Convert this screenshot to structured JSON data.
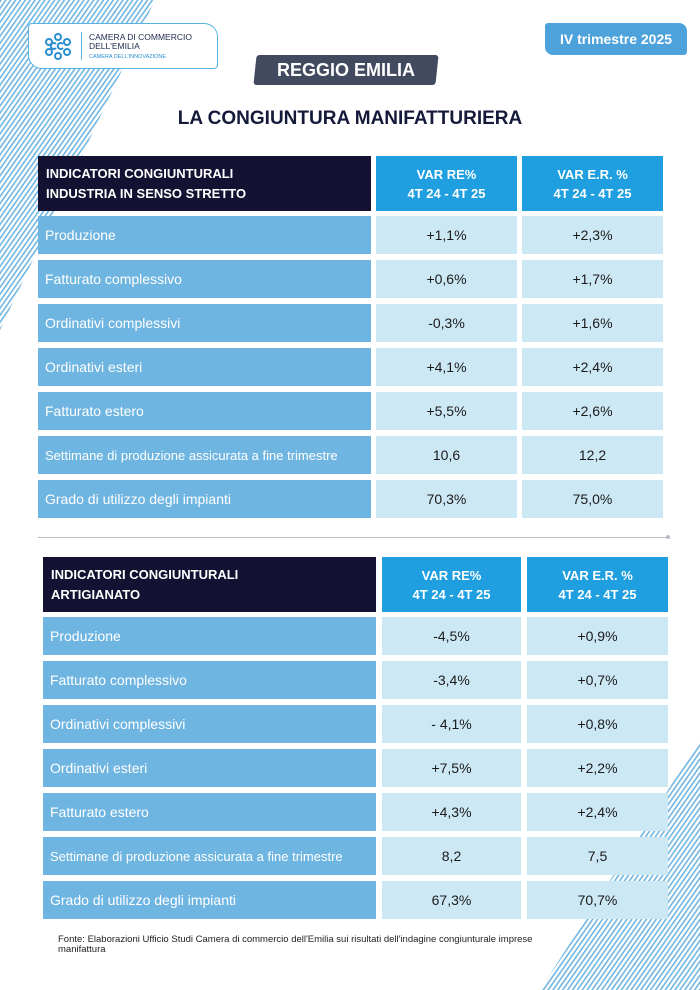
{
  "logo": {
    "line1": "CAMERA DI COMMERCIO",
    "line2": "DELL'EMILIA",
    "tagline": "CAMERA DELL'INNOVAZIONE"
  },
  "region": "REGGIO EMILIA",
  "period": "IV trimestre 2025",
  "title": "LA CONGIUNTURA MANIFATTURIERA",
  "colors": {
    "header_dark": "#141233",
    "header_blue": "#1f9fe0",
    "label_blue": "#6fb5e1",
    "value_bg": "#cde8f5"
  },
  "tables": [
    {
      "header": {
        "label": "INDICATORI CONGIUNTURALI\nINDUSTRIA IN SENSO STRETTO",
        "col1": [
          "VAR RE%",
          "4T 24 - 4T 25"
        ],
        "col2": [
          "VAR E.R. %",
          "4T 24 - 4T 25"
        ]
      },
      "rows": [
        {
          "label": "Produzione",
          "re": "+1,1%",
          "er": "+2,3%"
        },
        {
          "label": "Fatturato complessivo",
          "re": "+0,6%",
          "er": "+1,7%"
        },
        {
          "label": "Ordinativi complessivi",
          "re": "-0,3%",
          "er": "+1,6%"
        },
        {
          "label": "Ordinativi esteri",
          "re": "+4,1%",
          "er": "+2,4%"
        },
        {
          "label": "Fatturato estero",
          "re": "+5,5%",
          "er": "+2,6%"
        },
        {
          "label": "Settimane di produzione assicurata a fine trimestre",
          "re": "10,6",
          "er": "12,2"
        },
        {
          "label": "Grado di utilizzo degli impianti",
          "re": "70,3%",
          "er": "75,0%"
        }
      ]
    },
    {
      "header": {
        "label": "INDICATORI CONGIUNTURALI\nARTIGIANATO",
        "col1": [
          "VAR RE%",
          "4T 24 - 4T 25"
        ],
        "col2": [
          "VAR E.R. %",
          "4T 24 - 4T 25"
        ]
      },
      "rows": [
        {
          "label": "Produzione",
          "re": "-4,5%",
          "er": "+0,9%"
        },
        {
          "label": "Fatturato complessivo",
          "re": "-3,4%",
          "er": "+0,7%"
        },
        {
          "label": "Ordinativi complessivi",
          "re": "- 4,1%",
          "er": "+0,8%"
        },
        {
          "label": "Ordinativi esteri",
          "re": "+7,5%",
          "er": "+2,2%"
        },
        {
          "label": "Fatturato estero",
          "re": "+4,3%",
          "er": "+2,4%"
        },
        {
          "label": "Settimane di produzione assicurata a fine trimestre",
          "re": "8,2",
          "er": "7,5"
        },
        {
          "label": "Grado di utilizzo degli impianti",
          "re": "67,3%",
          "er": "70,7%"
        }
      ]
    }
  ],
  "footer": "Fonte: Elaborazioni Ufficio Studi Camera di commercio dell'Emilia sui risultati dell'indagine congiunturale imprese manifattura"
}
